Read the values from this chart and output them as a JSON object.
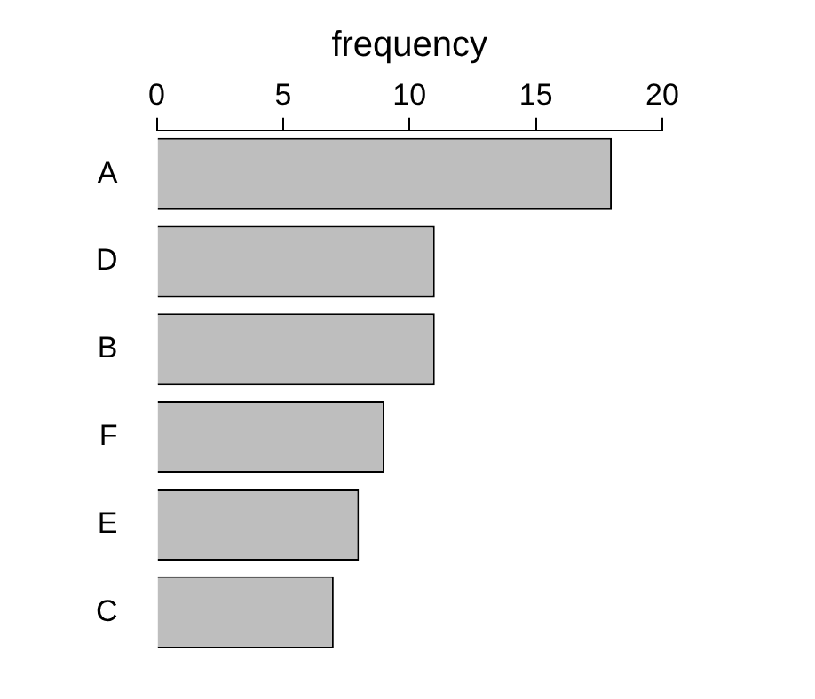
{
  "chart_data": {
    "type": "bar",
    "orientation": "horizontal",
    "xlabel": "frequency",
    "categories": [
      "A",
      "D",
      "B",
      "F",
      "E",
      "C"
    ],
    "values": [
      18,
      11,
      11,
      9,
      8,
      7
    ],
    "color": "#bebebe",
    "xlim": [
      0,
      20
    ],
    "xticks": [
      0,
      5,
      10,
      15,
      20
    ],
    "grid": false,
    "legend": false
  }
}
